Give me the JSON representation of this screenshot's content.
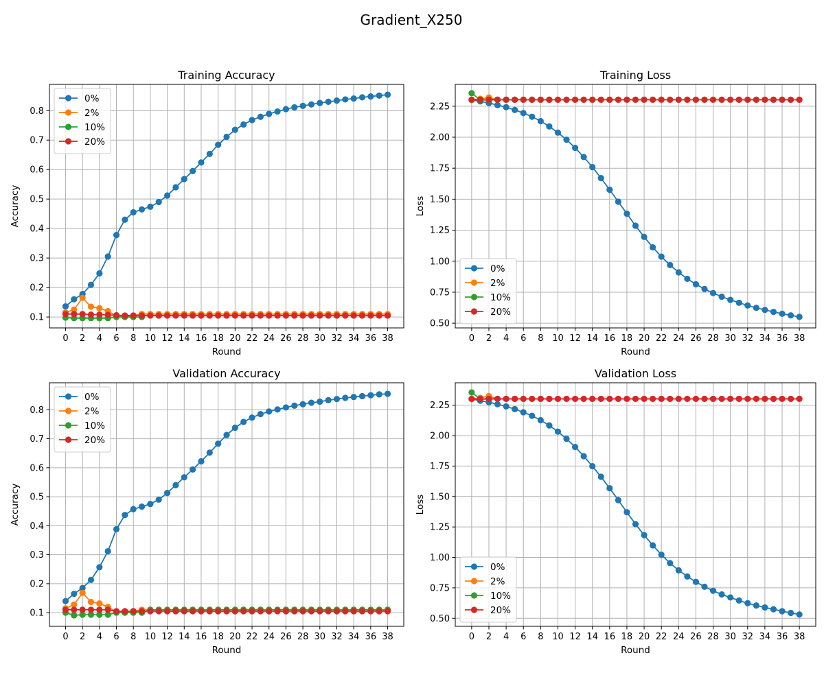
{
  "figure": {
    "suptitle": "Gradient_X250"
  },
  "colors": {
    "0%": "#1f77b4",
    "2%": "#ff7f0e",
    "10%": "#2ca02c",
    "20%": "#d62728"
  },
  "chart_data": [
    {
      "id": "training-accuracy",
      "type": "line",
      "title": "Training Accuracy",
      "xlabel": "Round",
      "ylabel": "Accuracy",
      "xlim": [
        -1.9,
        39.9
      ],
      "ylim": [
        0.063,
        0.889
      ],
      "xticks": [
        0,
        2,
        4,
        6,
        8,
        10,
        12,
        14,
        16,
        18,
        20,
        22,
        24,
        26,
        28,
        30,
        32,
        34,
        36,
        38
      ],
      "yticks": [
        0.1,
        0.2,
        0.3,
        0.4,
        0.5,
        0.6,
        0.7,
        0.8
      ],
      "ytick_labels": [
        "0.1",
        "0.2",
        "0.3",
        "0.4",
        "0.5",
        "0.6",
        "0.7",
        "0.8"
      ],
      "grid": true,
      "legend": "upper-left",
      "series": [
        {
          "name": "0%",
          "values": [
            0.136,
            0.16,
            0.178,
            0.209,
            0.248,
            0.305,
            0.378,
            0.43,
            0.455,
            0.465,
            0.474,
            0.49,
            0.512,
            0.54,
            0.568,
            0.595,
            0.624,
            0.653,
            0.684,
            0.711,
            0.735,
            0.753,
            0.768,
            0.779,
            0.789,
            0.797,
            0.805,
            0.811,
            0.816,
            0.821,
            0.826,
            0.83,
            0.834,
            0.838,
            0.841,
            0.845,
            0.848,
            0.851,
            0.854
          ]
        },
        {
          "name": "2%",
          "values": [
            0.115,
            0.125,
            0.165,
            0.135,
            0.13,
            0.12,
            0.103,
            0.102,
            0.105,
            0.11,
            0.11,
            0.11,
            0.11,
            0.11,
            0.11,
            0.11,
            0.11,
            0.11,
            0.11,
            0.11,
            0.11,
            0.11,
            0.11,
            0.11,
            0.11,
            0.11,
            0.11,
            0.11,
            0.11,
            0.11,
            0.11,
            0.11,
            0.11,
            0.11,
            0.11,
            0.11,
            0.11,
            0.11,
            0.11
          ]
        },
        {
          "name": "10%",
          "values": [
            0.098,
            0.096,
            0.096,
            0.096,
            0.096,
            0.096,
            0.1,
            0.1,
            0.1,
            0.1,
            null,
            null,
            null,
            null,
            null,
            null,
            null,
            null,
            null,
            null,
            null,
            null,
            null,
            null,
            null,
            null,
            null,
            null,
            null,
            null,
            null,
            null,
            null,
            null,
            null,
            null,
            null,
            null,
            null
          ]
        },
        {
          "name": "20%",
          "values": [
            0.11,
            0.11,
            0.11,
            0.108,
            0.108,
            0.107,
            0.106,
            0.105,
            0.105,
            0.105,
            0.105,
            0.105,
            0.105,
            0.105,
            0.105,
            0.105,
            0.105,
            0.105,
            0.105,
            0.105,
            0.105,
            0.105,
            0.105,
            0.105,
            0.105,
            0.105,
            0.105,
            0.105,
            0.105,
            0.105,
            0.105,
            0.105,
            0.105,
            0.105,
            0.105,
            0.105,
            0.105,
            0.105,
            0.105
          ]
        }
      ]
    },
    {
      "id": "training-loss",
      "type": "line",
      "title": "Training Loss",
      "xlabel": "Round",
      "ylabel": "Loss",
      "xlim": [
        -1.9,
        39.9
      ],
      "ylim": [
        0.462,
        2.426
      ],
      "xticks": [
        0,
        2,
        4,
        6,
        8,
        10,
        12,
        14,
        16,
        18,
        20,
        22,
        24,
        26,
        28,
        30,
        32,
        34,
        36,
        38
      ],
      "yticks": [
        0.5,
        0.75,
        1.0,
        1.25,
        1.5,
        1.75,
        2.0,
        2.25
      ],
      "ytick_labels": [
        "0.50",
        "0.75",
        "1.00",
        "1.25",
        "1.50",
        "1.75",
        "2.00",
        "2.25"
      ],
      "grid": true,
      "legend": "lower-left",
      "series": [
        {
          "name": "0%",
          "values": [
            2.3,
            2.289,
            2.276,
            2.259,
            2.242,
            2.22,
            2.195,
            2.165,
            2.13,
            2.087,
            2.037,
            1.98,
            1.914,
            1.84,
            1.759,
            1.67,
            1.576,
            1.48,
            1.383,
            1.286,
            1.196,
            1.112,
            1.037,
            0.969,
            0.91,
            0.858,
            0.814,
            0.776,
            0.743,
            0.714,
            0.688,
            0.665,
            0.643,
            0.624,
            0.607,
            0.591,
            0.576,
            0.563,
            0.551
          ]
        },
        {
          "name": "2%",
          "values": [
            2.3,
            2.31,
            2.32,
            2.302,
            2.302,
            2.302,
            2.302,
            2.302,
            2.302,
            2.302,
            2.302,
            2.302,
            2.302,
            2.302,
            2.302,
            2.302,
            2.302,
            2.302,
            2.302,
            2.302,
            2.302,
            2.302,
            2.302,
            2.302,
            2.302,
            2.302,
            2.302,
            2.302,
            2.302,
            2.302,
            2.302,
            2.302,
            2.302,
            2.302,
            2.302,
            2.302,
            2.302,
            2.302,
            2.302
          ]
        },
        {
          "name": "10%",
          "values": [
            2.355,
            2.3,
            2.3,
            2.302,
            2.302,
            2.302,
            2.302,
            2.302,
            2.302,
            2.302,
            null,
            null,
            null,
            null,
            null,
            null,
            null,
            null,
            null,
            null,
            null,
            null,
            null,
            null,
            null,
            null,
            null,
            null,
            null,
            null,
            null,
            null,
            null,
            null,
            null,
            null,
            null,
            null,
            null
          ]
        },
        {
          "name": "20%",
          "values": [
            2.302,
            2.302,
            2.302,
            2.302,
            2.302,
            2.302,
            2.302,
            2.302,
            2.302,
            2.302,
            2.302,
            2.302,
            2.302,
            2.302,
            2.302,
            2.302,
            2.302,
            2.302,
            2.302,
            2.302,
            2.302,
            2.302,
            2.302,
            2.302,
            2.302,
            2.302,
            2.302,
            2.302,
            2.302,
            2.302,
            2.302,
            2.302,
            2.302,
            2.302,
            2.302,
            2.302,
            2.302,
            2.302,
            2.302
          ]
        }
      ]
    },
    {
      "id": "validation-accuracy",
      "type": "line",
      "title": "Validation Accuracy",
      "xlabel": "Round",
      "ylabel": "Accuracy",
      "xlim": [
        -1.9,
        39.9
      ],
      "ylim": [
        0.053,
        0.893
      ],
      "xticks": [
        0,
        2,
        4,
        6,
        8,
        10,
        12,
        14,
        16,
        18,
        20,
        22,
        24,
        26,
        28,
        30,
        32,
        34,
        36,
        38
      ],
      "yticks": [
        0.1,
        0.2,
        0.3,
        0.4,
        0.5,
        0.6,
        0.7,
        0.8
      ],
      "ytick_labels": [
        "0.1",
        "0.2",
        "0.3",
        "0.4",
        "0.5",
        "0.6",
        "0.7",
        "0.8"
      ],
      "grid": true,
      "legend": "upper-left",
      "series": [
        {
          "name": "0%",
          "values": [
            0.14,
            0.165,
            0.185,
            0.213,
            0.257,
            0.312,
            0.388,
            0.437,
            0.457,
            0.466,
            0.475,
            0.49,
            0.513,
            0.54,
            0.567,
            0.594,
            0.622,
            0.652,
            0.683,
            0.713,
            0.738,
            0.758,
            0.773,
            0.785,
            0.794,
            0.801,
            0.808,
            0.814,
            0.819,
            0.824,
            0.828,
            0.833,
            0.837,
            0.841,
            0.844,
            0.847,
            0.85,
            0.853,
            0.855
          ]
        },
        {
          "name": "2%",
          "values": [
            0.115,
            0.128,
            0.168,
            0.137,
            0.132,
            0.12,
            0.103,
            0.103,
            0.105,
            0.11,
            0.11,
            0.11,
            0.11,
            0.11,
            0.11,
            0.11,
            0.11,
            0.11,
            0.11,
            0.11,
            0.11,
            0.11,
            0.11,
            0.11,
            0.11,
            0.11,
            0.11,
            0.11,
            0.11,
            0.11,
            0.11,
            0.11,
            0.11,
            0.11,
            0.11,
            0.11,
            0.11,
            0.11,
            0.11
          ]
        },
        {
          "name": "10%",
          "values": [
            0.1,
            0.091,
            0.093,
            0.093,
            0.093,
            0.093,
            0.1,
            0.1,
            0.1,
            0.1,
            0.11,
            0.11,
            0.11,
            0.11,
            0.11,
            0.11,
            0.11,
            0.11,
            0.11,
            0.11,
            0.11,
            0.11,
            0.11,
            0.11,
            0.11,
            0.11,
            0.11,
            0.11,
            0.11,
            0.11,
            0.11,
            0.11,
            0.11,
            0.11,
            0.11,
            0.11,
            0.11,
            0.11,
            0.11
          ]
        },
        {
          "name": "20%",
          "values": [
            0.11,
            0.11,
            0.11,
            0.11,
            0.11,
            0.11,
            0.105,
            0.105,
            0.105,
            0.105,
            0.105,
            0.105,
            0.105,
            0.105,
            0.105,
            0.105,
            0.105,
            0.105,
            0.105,
            0.105,
            0.105,
            0.105,
            0.105,
            0.105,
            0.105,
            0.105,
            0.105,
            0.105,
            0.105,
            0.105,
            0.105,
            0.105,
            0.105,
            0.105,
            0.105,
            0.105,
            0.105,
            0.105,
            0.105
          ]
        }
      ]
    },
    {
      "id": "validation-loss",
      "type": "line",
      "title": "Validation Loss",
      "xlabel": "Round",
      "ylabel": "Loss",
      "xlim": [
        -1.9,
        39.9
      ],
      "ylim": [
        0.434,
        2.434
      ],
      "xticks": [
        0,
        2,
        4,
        6,
        8,
        10,
        12,
        14,
        16,
        18,
        20,
        22,
        24,
        26,
        28,
        30,
        32,
        34,
        36,
        38
      ],
      "yticks": [
        0.5,
        0.75,
        1.0,
        1.25,
        1.5,
        1.75,
        2.0,
        2.25
      ],
      "ytick_labels": [
        "0.50",
        "0.75",
        "1.00",
        "1.25",
        "1.50",
        "1.75",
        "2.00",
        "2.25"
      ],
      "grid": true,
      "legend": "lower-left",
      "series": [
        {
          "name": "0%",
          "values": [
            2.3,
            2.287,
            2.274,
            2.258,
            2.24,
            2.218,
            2.192,
            2.163,
            2.127,
            2.084,
            2.033,
            1.974,
            1.907,
            1.831,
            1.749,
            1.662,
            1.568,
            1.47,
            1.371,
            1.273,
            1.183,
            1.099,
            1.022,
            0.953,
            0.894,
            0.843,
            0.799,
            0.759,
            0.726,
            0.696,
            0.671,
            0.646,
            0.624,
            0.605,
            0.589,
            0.574,
            0.558,
            0.544,
            0.531
          ]
        },
        {
          "name": "2%",
          "values": [
            2.3,
            2.31,
            2.325,
            2.302,
            2.302,
            2.302,
            2.302,
            2.302,
            2.302,
            2.302,
            2.302,
            2.302,
            2.302,
            2.302,
            2.302,
            2.302,
            2.302,
            2.302,
            2.302,
            2.302,
            2.302,
            2.302,
            2.302,
            2.302,
            2.302,
            2.302,
            2.302,
            2.302,
            2.302,
            2.302,
            2.302,
            2.302,
            2.302,
            2.302,
            2.302,
            2.302,
            2.302,
            2.302,
            2.302
          ]
        },
        {
          "name": "10%",
          "values": [
            2.355,
            2.3,
            2.3,
            2.302,
            2.302,
            2.302,
            2.302,
            2.302,
            2.302,
            2.302,
            null,
            null,
            null,
            null,
            null,
            null,
            null,
            null,
            null,
            null,
            null,
            null,
            null,
            null,
            null,
            null,
            null,
            null,
            null,
            null,
            null,
            null,
            null,
            null,
            null,
            null,
            null,
            null,
            null
          ]
        },
        {
          "name": "20%",
          "values": [
            2.302,
            2.302,
            2.302,
            2.302,
            2.302,
            2.302,
            2.302,
            2.302,
            2.302,
            2.302,
            2.302,
            2.302,
            2.302,
            2.302,
            2.302,
            2.302,
            2.302,
            2.302,
            2.302,
            2.302,
            2.302,
            2.302,
            2.302,
            2.302,
            2.302,
            2.302,
            2.302,
            2.302,
            2.302,
            2.302,
            2.302,
            2.302,
            2.302,
            2.302,
            2.302,
            2.302,
            2.302,
            2.302,
            2.302
          ]
        }
      ]
    }
  ]
}
